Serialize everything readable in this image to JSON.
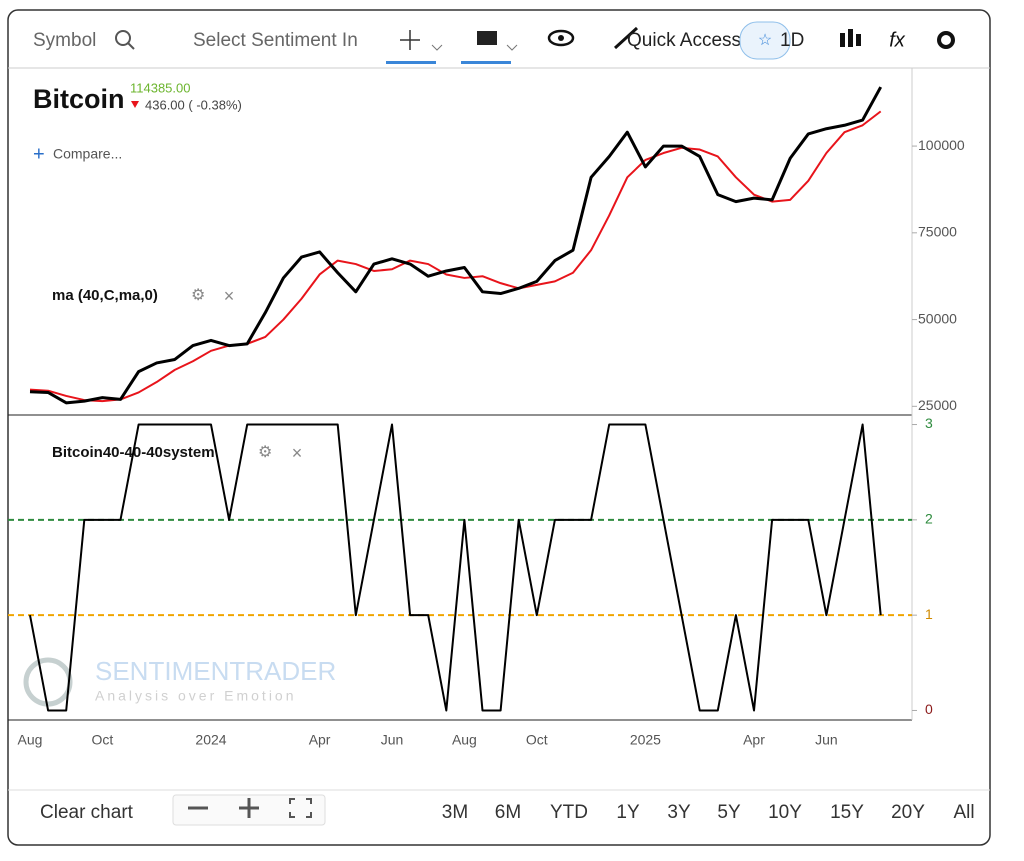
{
  "toolbar": {
    "symbol": "Symbol",
    "sentiment": "Select Sentiment In",
    "quick_access": "Quick Access",
    "interval": "1D"
  },
  "header": {
    "last": "114385.00",
    "change": "436.00 ( -0.38%)",
    "compare": "Compare..."
  },
  "watermark": {
    "brand": "SENTIMENTRADER",
    "tagline": "Analysis over Emotion"
  },
  "chart_data": [
    {
      "type": "line",
      "categories": [
        "Aug",
        null,
        null,
        null,
        "Oct",
        null,
        null,
        null,
        null,
        null,
        "2024",
        null,
        null,
        null,
        null,
        null,
        "Apr",
        null,
        null,
        null,
        "Jun",
        null,
        null,
        null,
        "Aug",
        null,
        null,
        null,
        "Oct",
        null,
        null,
        null,
        null,
        null,
        "2025",
        null,
        null,
        null,
        null,
        null,
        "Apr",
        null,
        null,
        null,
        "Jun",
        null,
        null,
        null
      ],
      "series": [
        {
          "name": "Bitcoin",
          "color": "#000000",
          "values": [
            29200,
            29000,
            26000,
            26500,
            27500,
            27000,
            35000,
            37500,
            38500,
            42500,
            44000,
            42500,
            43000,
            52000,
            62000,
            68000,
            69500,
            63500,
            58000,
            66000,
            67500,
            66000,
            62500,
            64000,
            65000,
            58000,
            57500,
            59000,
            61000,
            67000,
            70000,
            91000,
            97000,
            104000,
            94000,
            100000,
            100000,
            97000,
            86000,
            84000,
            85000,
            84500,
            96500,
            103500,
            105000,
            106000,
            107500,
            117000
          ]
        },
        {
          "name": "ma (40,C,ma,0)",
          "color": "#e8141b",
          "values": [
            29800,
            29500,
            28000,
            26800,
            26500,
            27000,
            29000,
            32000,
            35500,
            38000,
            41000,
            42500,
            43000,
            45000,
            50000,
            56000,
            63000,
            67000,
            66000,
            64000,
            64500,
            67000,
            66000,
            63000,
            62000,
            62500,
            60500,
            59000,
            60000,
            61000,
            63500,
            70000,
            80000,
            91000,
            96000,
            98000,
            99500,
            99000,
            97000,
            91000,
            86000,
            84000,
            84500,
            90000,
            98000,
            104000,
            106000,
            110000
          ]
        }
      ],
      "ylim": [
        22500,
        122500
      ],
      "yticks": [
        25000,
        50000,
        75000,
        100000
      ]
    },
    {
      "type": "line",
      "series": [
        {
          "name": "Bitcoin40-40-40system",
          "color": "#000000",
          "values": [
            1,
            0,
            0,
            2,
            2,
            2,
            3,
            3,
            3,
            3,
            3,
            2,
            3,
            3,
            3,
            3,
            3,
            3,
            1,
            2,
            3,
            1,
            1,
            0,
            2,
            0,
            0,
            2,
            1,
            2,
            2,
            2,
            3,
            3,
            3,
            2,
            1,
            0,
            0,
            1,
            0,
            2,
            2,
            2,
            1,
            2,
            3,
            1
          ]
        }
      ],
      "ylim": [
        -0.1,
        3.1
      ],
      "yticks": [
        0,
        1,
        2,
        3
      ],
      "ytick_colors": [
        "#8b1a1a",
        "#d08a00",
        "#2e8b3e",
        "#2e8b3e"
      ],
      "hlines": [
        {
          "value": 2,
          "color": "#2e8b3e"
        },
        {
          "value": 1,
          "color": "#f0a500"
        }
      ]
    }
  ],
  "footer": {
    "clear": "Clear chart",
    "ranges": [
      "3M",
      "6M",
      "YTD",
      "1Y",
      "3Y",
      "5Y",
      "10Y",
      "15Y",
      "20Y",
      "All"
    ]
  }
}
